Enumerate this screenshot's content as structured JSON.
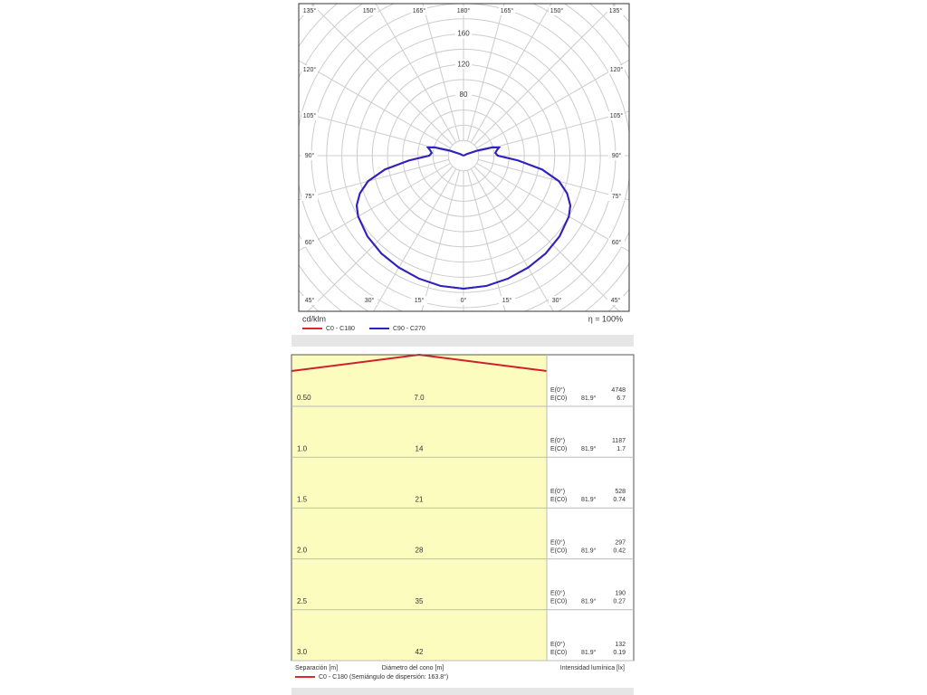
{
  "chart_data": {
    "type": "polar",
    "unit": "cd/klm",
    "efficiency": "η = 100%",
    "angle_labels": {
      "top": [
        "135°",
        "150°",
        "165°",
        "180°",
        "165°",
        "150°",
        "135°"
      ],
      "left": [
        "120°",
        "105°",
        "90°",
        "75°",
        "60°"
      ],
      "right": [
        "120°",
        "105°",
        "90°",
        "75°",
        "60°"
      ],
      "bottom": [
        "45°",
        "30°",
        "15°",
        "0°",
        "15°",
        "30°",
        "45°"
      ]
    },
    "rlim": [
      0,
      200
    ],
    "rticks": [
      80,
      120,
      160
    ],
    "gamma": [
      0,
      10,
      20,
      30,
      40,
      50,
      60,
      65,
      70,
      75,
      80,
      85,
      90,
      95,
      100,
      103,
      106,
      110,
      115,
      120,
      140,
      160,
      180
    ],
    "series": [
      {
        "name": "C0 - C180",
        "color": "#e0252b",
        "values": [
          175,
          174,
          172,
          170,
          168,
          165,
          160,
          155,
          145,
          130,
          105,
          72,
          45,
          42,
          45,
          48,
          40,
          20,
          5,
          0,
          0,
          0,
          0
        ]
      },
      {
        "name": "C90 - C270",
        "color": "#2424c8",
        "values": [
          175,
          174,
          172,
          170,
          168,
          165,
          160,
          155,
          145,
          130,
          105,
          72,
          45,
          42,
          45,
          48,
          40,
          20,
          5,
          0,
          0,
          0,
          0
        ]
      }
    ]
  },
  "cone": {
    "rows": [
      [
        "0.50",
        "7.0",
        "4748",
        "6.7"
      ],
      [
        "1.0",
        "14",
        "1187",
        "1.7"
      ],
      [
        "1.5",
        "21",
        "528",
        "0.74"
      ],
      [
        "2.0",
        "28",
        "297",
        "0.42"
      ],
      [
        "2.5",
        "35",
        "190",
        "0.27"
      ],
      [
        "3.0",
        "42",
        "132",
        "0.19"
      ]
    ],
    "e0_label": "E(0°)",
    "ec0_label": "E(C0)",
    "angle": "81.9°",
    "footer": [
      "Separación [m]",
      "Diámetro del cono [m]",
      "Intensidad lumínica [lx]"
    ],
    "legend": "C0 - C180 (Semiángulo de dispersión: 163.8°)",
    "legend_color": "#e0252b"
  }
}
